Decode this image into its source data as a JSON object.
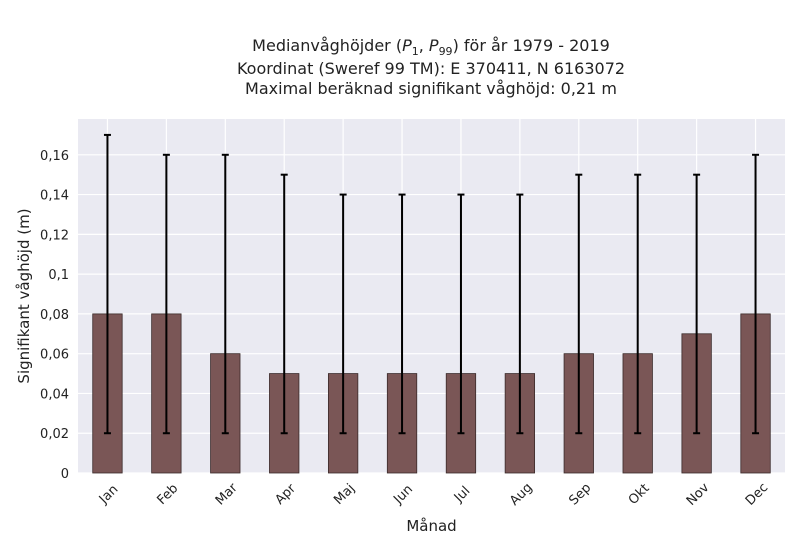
{
  "title": {
    "line1_prefix": "Medianvåghöjder (",
    "p_low": "P",
    "p_low_sub": "1",
    "p_sep": ", ",
    "p_high": "P",
    "p_high_sub": "99",
    "line1_suffix": ") för år 1979 - 2019",
    "line2": "Koordinat (Sweref 99 TM): E 370411, N 6163072",
    "line3": "Maximal beräknad signifikant våghöjd: 0,21 m"
  },
  "chart_data": {
    "type": "bar",
    "xlabel": "Månad",
    "ylabel": "Signifikant våghöjd (m)",
    "ylim": [
      0,
      0.178
    ],
    "yticks": [
      0,
      0.02,
      0.04,
      0.06,
      0.08,
      0.1,
      0.12,
      0.14,
      0.16
    ],
    "ytick_labels": [
      "0",
      "0,02",
      "0,04",
      "0,06",
      "0,08",
      "0,1",
      "0,12",
      "0,14",
      "0,16"
    ],
    "categories": [
      "Jan",
      "Feb",
      "Mar",
      "Apr",
      "Maj",
      "Jun",
      "Jul",
      "Aug",
      "Sep",
      "Okt",
      "Nov",
      "Dec"
    ],
    "values": [
      0.08,
      0.08,
      0.06,
      0.05,
      0.05,
      0.05,
      0.05,
      0.05,
      0.06,
      0.06,
      0.07,
      0.08
    ],
    "err_low": [
      0.02,
      0.02,
      0.02,
      0.02,
      0.02,
      0.02,
      0.02,
      0.02,
      0.02,
      0.02,
      0.02,
      0.02
    ],
    "err_high": [
      0.17,
      0.16,
      0.16,
      0.15,
      0.14,
      0.14,
      0.14,
      0.14,
      0.15,
      0.15,
      0.15,
      0.16
    ],
    "grid": true,
    "colors": {
      "bar": "#7a5656",
      "bar_edge": "#3a2a2a",
      "plot_bg": "#eaeaf2",
      "grid": "#ffffff",
      "error": "#000000"
    }
  }
}
